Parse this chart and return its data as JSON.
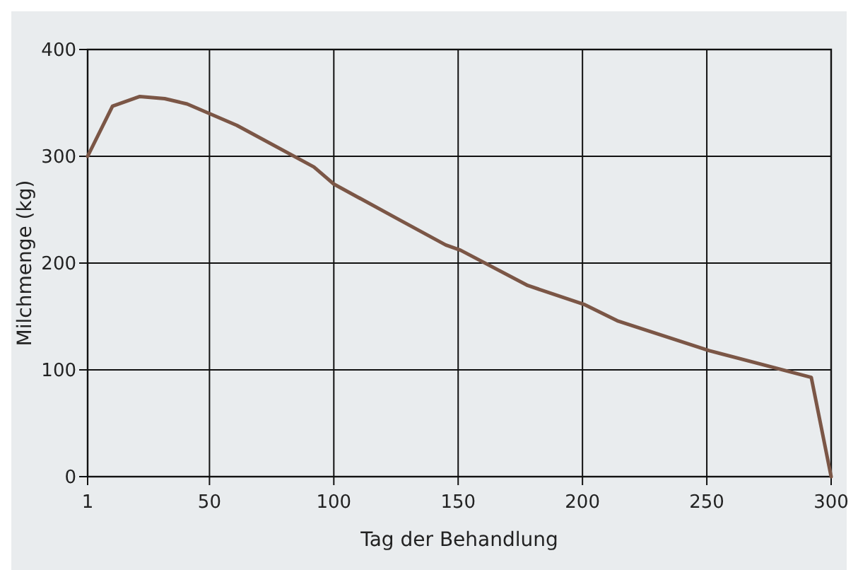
{
  "chart_data": {
    "type": "line",
    "xlabel": "Tag der Behandlung",
    "ylabel": "Milchmenge (kg)",
    "x": [
      1,
      11,
      22,
      32,
      41,
      61,
      92,
      100,
      126,
      145,
      151,
      178,
      201,
      214,
      251,
      292,
      300
    ],
    "series": [
      {
        "color": "#7b5646",
        "values": [
          300,
          347,
          356,
          354,
          349,
          329,
          290,
          274,
          241,
          217,
          212,
          179,
          161,
          146,
          118,
          93,
          0
        ]
      }
    ],
    "xlim": [
      1,
      300
    ],
    "xticks": [
      1,
      50,
      100,
      150,
      200,
      250,
      300
    ],
    "ylim": [
      0,
      400
    ],
    "yticks": [
      0,
      100,
      200,
      300,
      400
    ],
    "grid": true,
    "marker": "none",
    "line_style": "solid"
  }
}
